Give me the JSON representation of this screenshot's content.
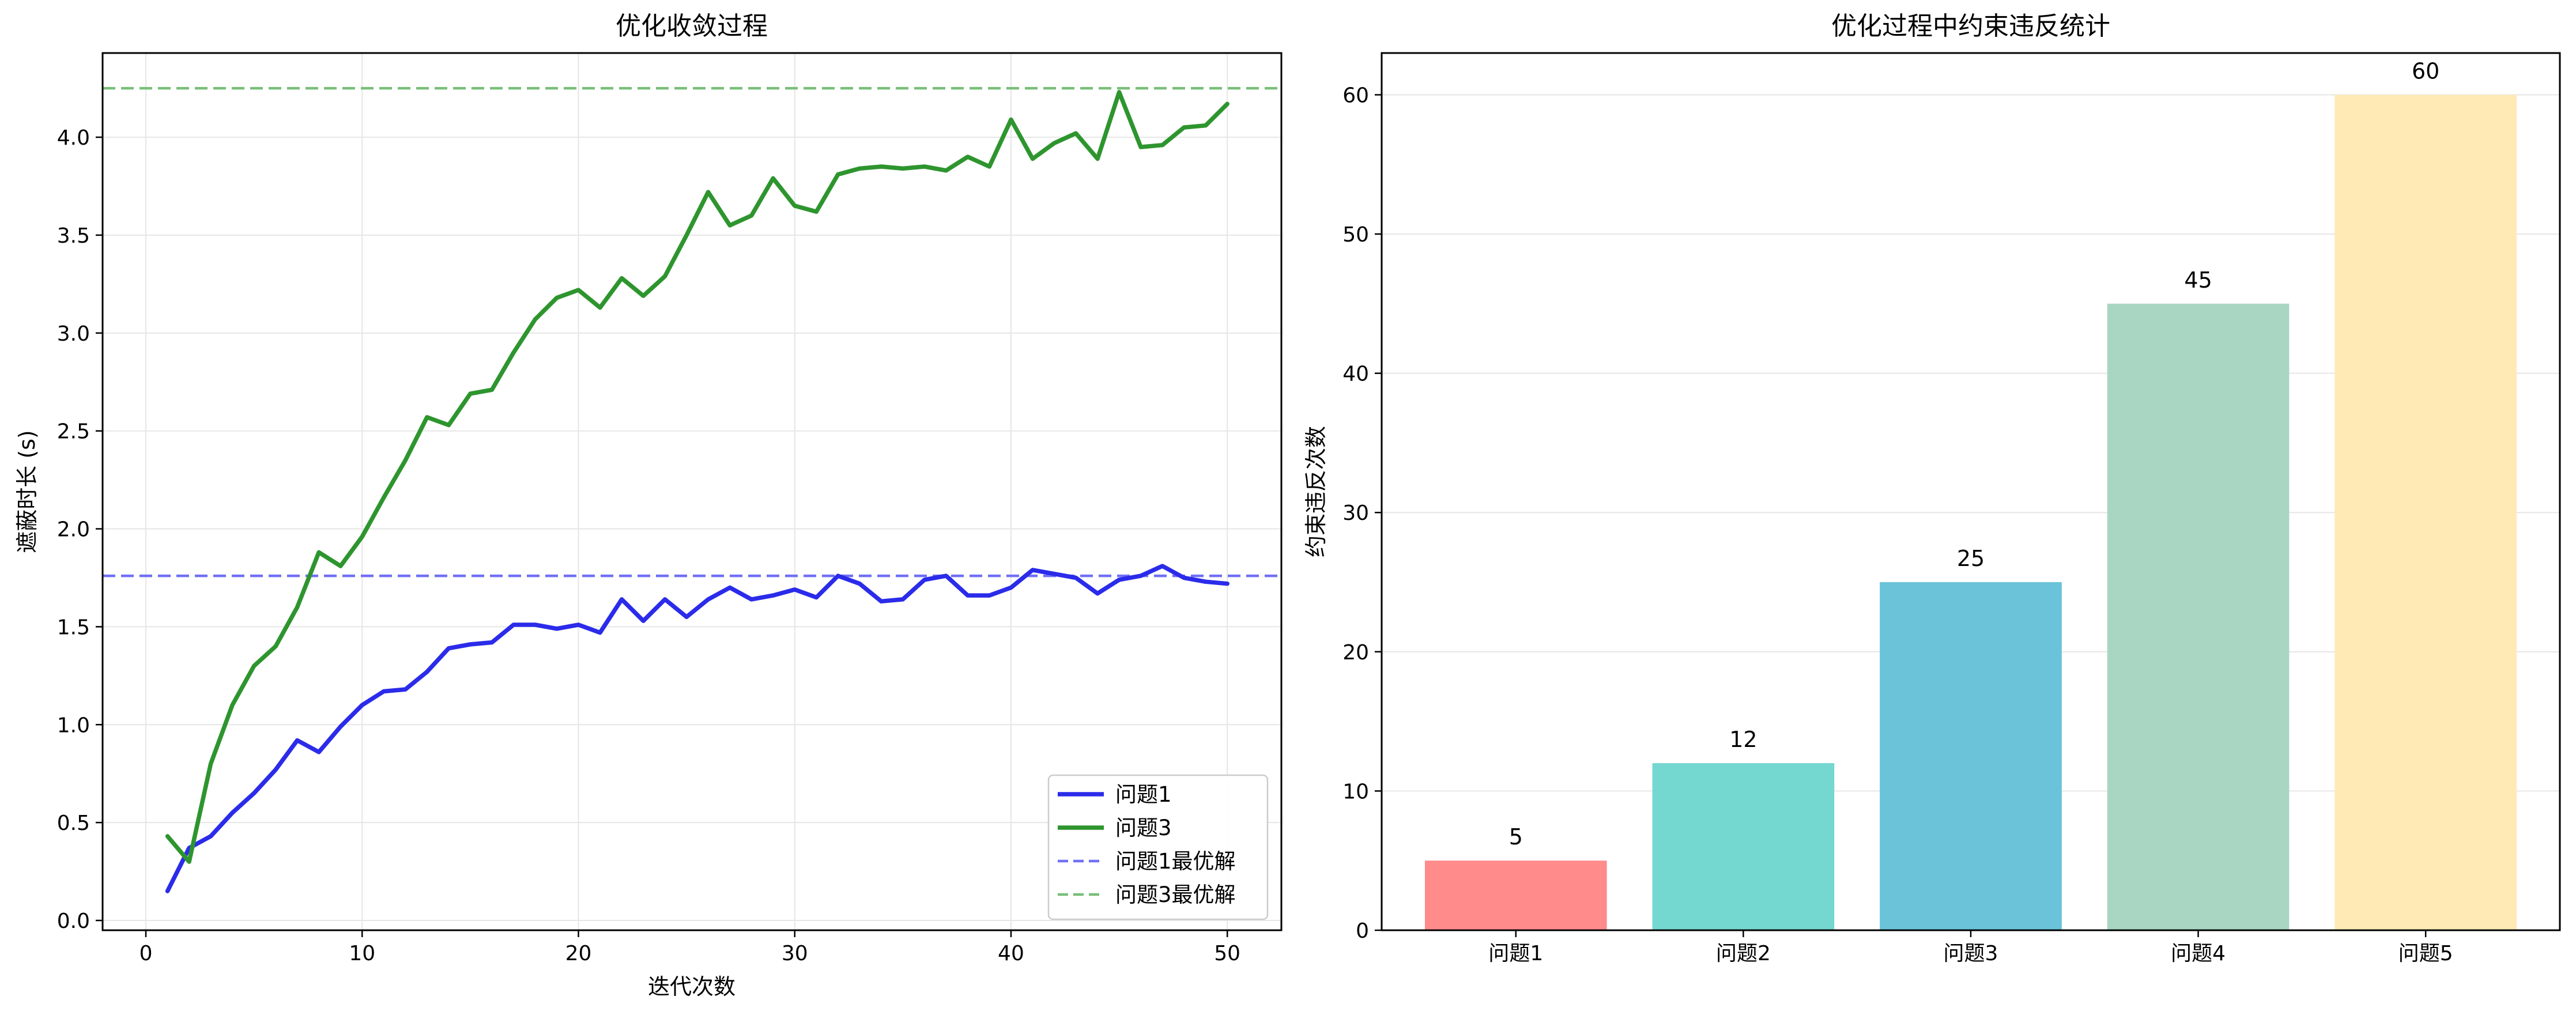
{
  "chart_data": [
    {
      "type": "line",
      "title": "优化收敛过程",
      "xlabel": "迭代次数",
      "ylabel": "遮蔽时长 (s)",
      "xlim": [
        -2,
        52.5
      ],
      "ylim": [
        -0.05,
        4.43
      ],
      "xticks": [
        0,
        10,
        20,
        30,
        40,
        50
      ],
      "yticks": [
        0.0,
        0.5,
        1.0,
        1.5,
        2.0,
        2.5,
        3.0,
        3.5,
        4.0
      ],
      "grid": true,
      "legend_position": "lower-right",
      "series": [
        {
          "name": "问题1",
          "color": "#2b2bea",
          "style": "solid",
          "x": [
            1,
            2,
            3,
            4,
            5,
            6,
            7,
            8,
            9,
            10,
            11,
            12,
            13,
            14,
            15,
            16,
            17,
            18,
            19,
            20,
            21,
            22,
            23,
            24,
            25,
            26,
            27,
            28,
            29,
            30,
            31,
            32,
            33,
            34,
            35,
            36,
            37,
            38,
            39,
            40,
            41,
            42,
            43,
            44,
            45,
            46,
            47,
            48,
            49,
            50
          ],
          "values": [
            0.15,
            0.37,
            0.43,
            0.55,
            0.65,
            0.77,
            0.92,
            0.86,
            0.99,
            1.1,
            1.17,
            1.18,
            1.27,
            1.39,
            1.41,
            1.42,
            1.51,
            1.51,
            1.49,
            1.51,
            1.47,
            1.64,
            1.53,
            1.64,
            1.55,
            1.64,
            1.7,
            1.64,
            1.66,
            1.69,
            1.65,
            1.76,
            1.72,
            1.63,
            1.64,
            1.74,
            1.76,
            1.66,
            1.66,
            1.7,
            1.79,
            1.77,
            1.75,
            1.67,
            1.74,
            1.76,
            1.81,
            1.75,
            1.73,
            1.72
          ]
        },
        {
          "name": "问题3",
          "color": "#2e952e",
          "style": "solid",
          "x": [
            1,
            2,
            3,
            4,
            5,
            6,
            7,
            8,
            9,
            10,
            11,
            12,
            13,
            14,
            15,
            16,
            17,
            18,
            19,
            20,
            21,
            22,
            23,
            24,
            25,
            26,
            27,
            28,
            29,
            30,
            31,
            32,
            33,
            34,
            35,
            36,
            37,
            38,
            39,
            40,
            41,
            42,
            43,
            44,
            45,
            46,
            47,
            48,
            49,
            50
          ],
          "values": [
            0.43,
            0.3,
            0.8,
            1.1,
            1.3,
            1.4,
            1.6,
            1.88,
            1.81,
            1.96,
            2.16,
            2.35,
            2.57,
            2.53,
            2.69,
            2.71,
            2.9,
            3.07,
            3.18,
            3.22,
            3.13,
            3.28,
            3.19,
            3.29,
            3.5,
            3.72,
            3.55,
            3.6,
            3.79,
            3.65,
            3.62,
            3.81,
            3.84,
            3.85,
            3.84,
            3.85,
            3.83,
            3.9,
            3.85,
            4.09,
            3.89,
            3.97,
            4.02,
            3.89,
            4.23,
            3.95,
            3.96,
            4.05,
            4.06,
            4.17
          ]
        },
        {
          "name": "问题1最优解",
          "color": "#7070f5",
          "style": "dashed",
          "value": 1.76
        },
        {
          "name": "问题3最优解",
          "color": "#79bf79",
          "style": "dashed",
          "value": 4.25
        }
      ]
    },
    {
      "type": "bar",
      "title": "优化过程中约束违反统计",
      "xlabel": "",
      "ylabel": "约束违反次数",
      "ylim": [
        0,
        63
      ],
      "yticks": [
        0,
        10,
        20,
        30,
        40,
        50,
        60
      ],
      "grid": true,
      "categories": [
        "问题1",
        "问题2",
        "问题3",
        "问题4",
        "问题5"
      ],
      "values": [
        5,
        12,
        25,
        45,
        60
      ],
      "colors": [
        "#ff8b8b",
        "#74d7d0",
        "#6ac3d9",
        "#a9d6c3",
        "#ffeab6"
      ]
    }
  ]
}
